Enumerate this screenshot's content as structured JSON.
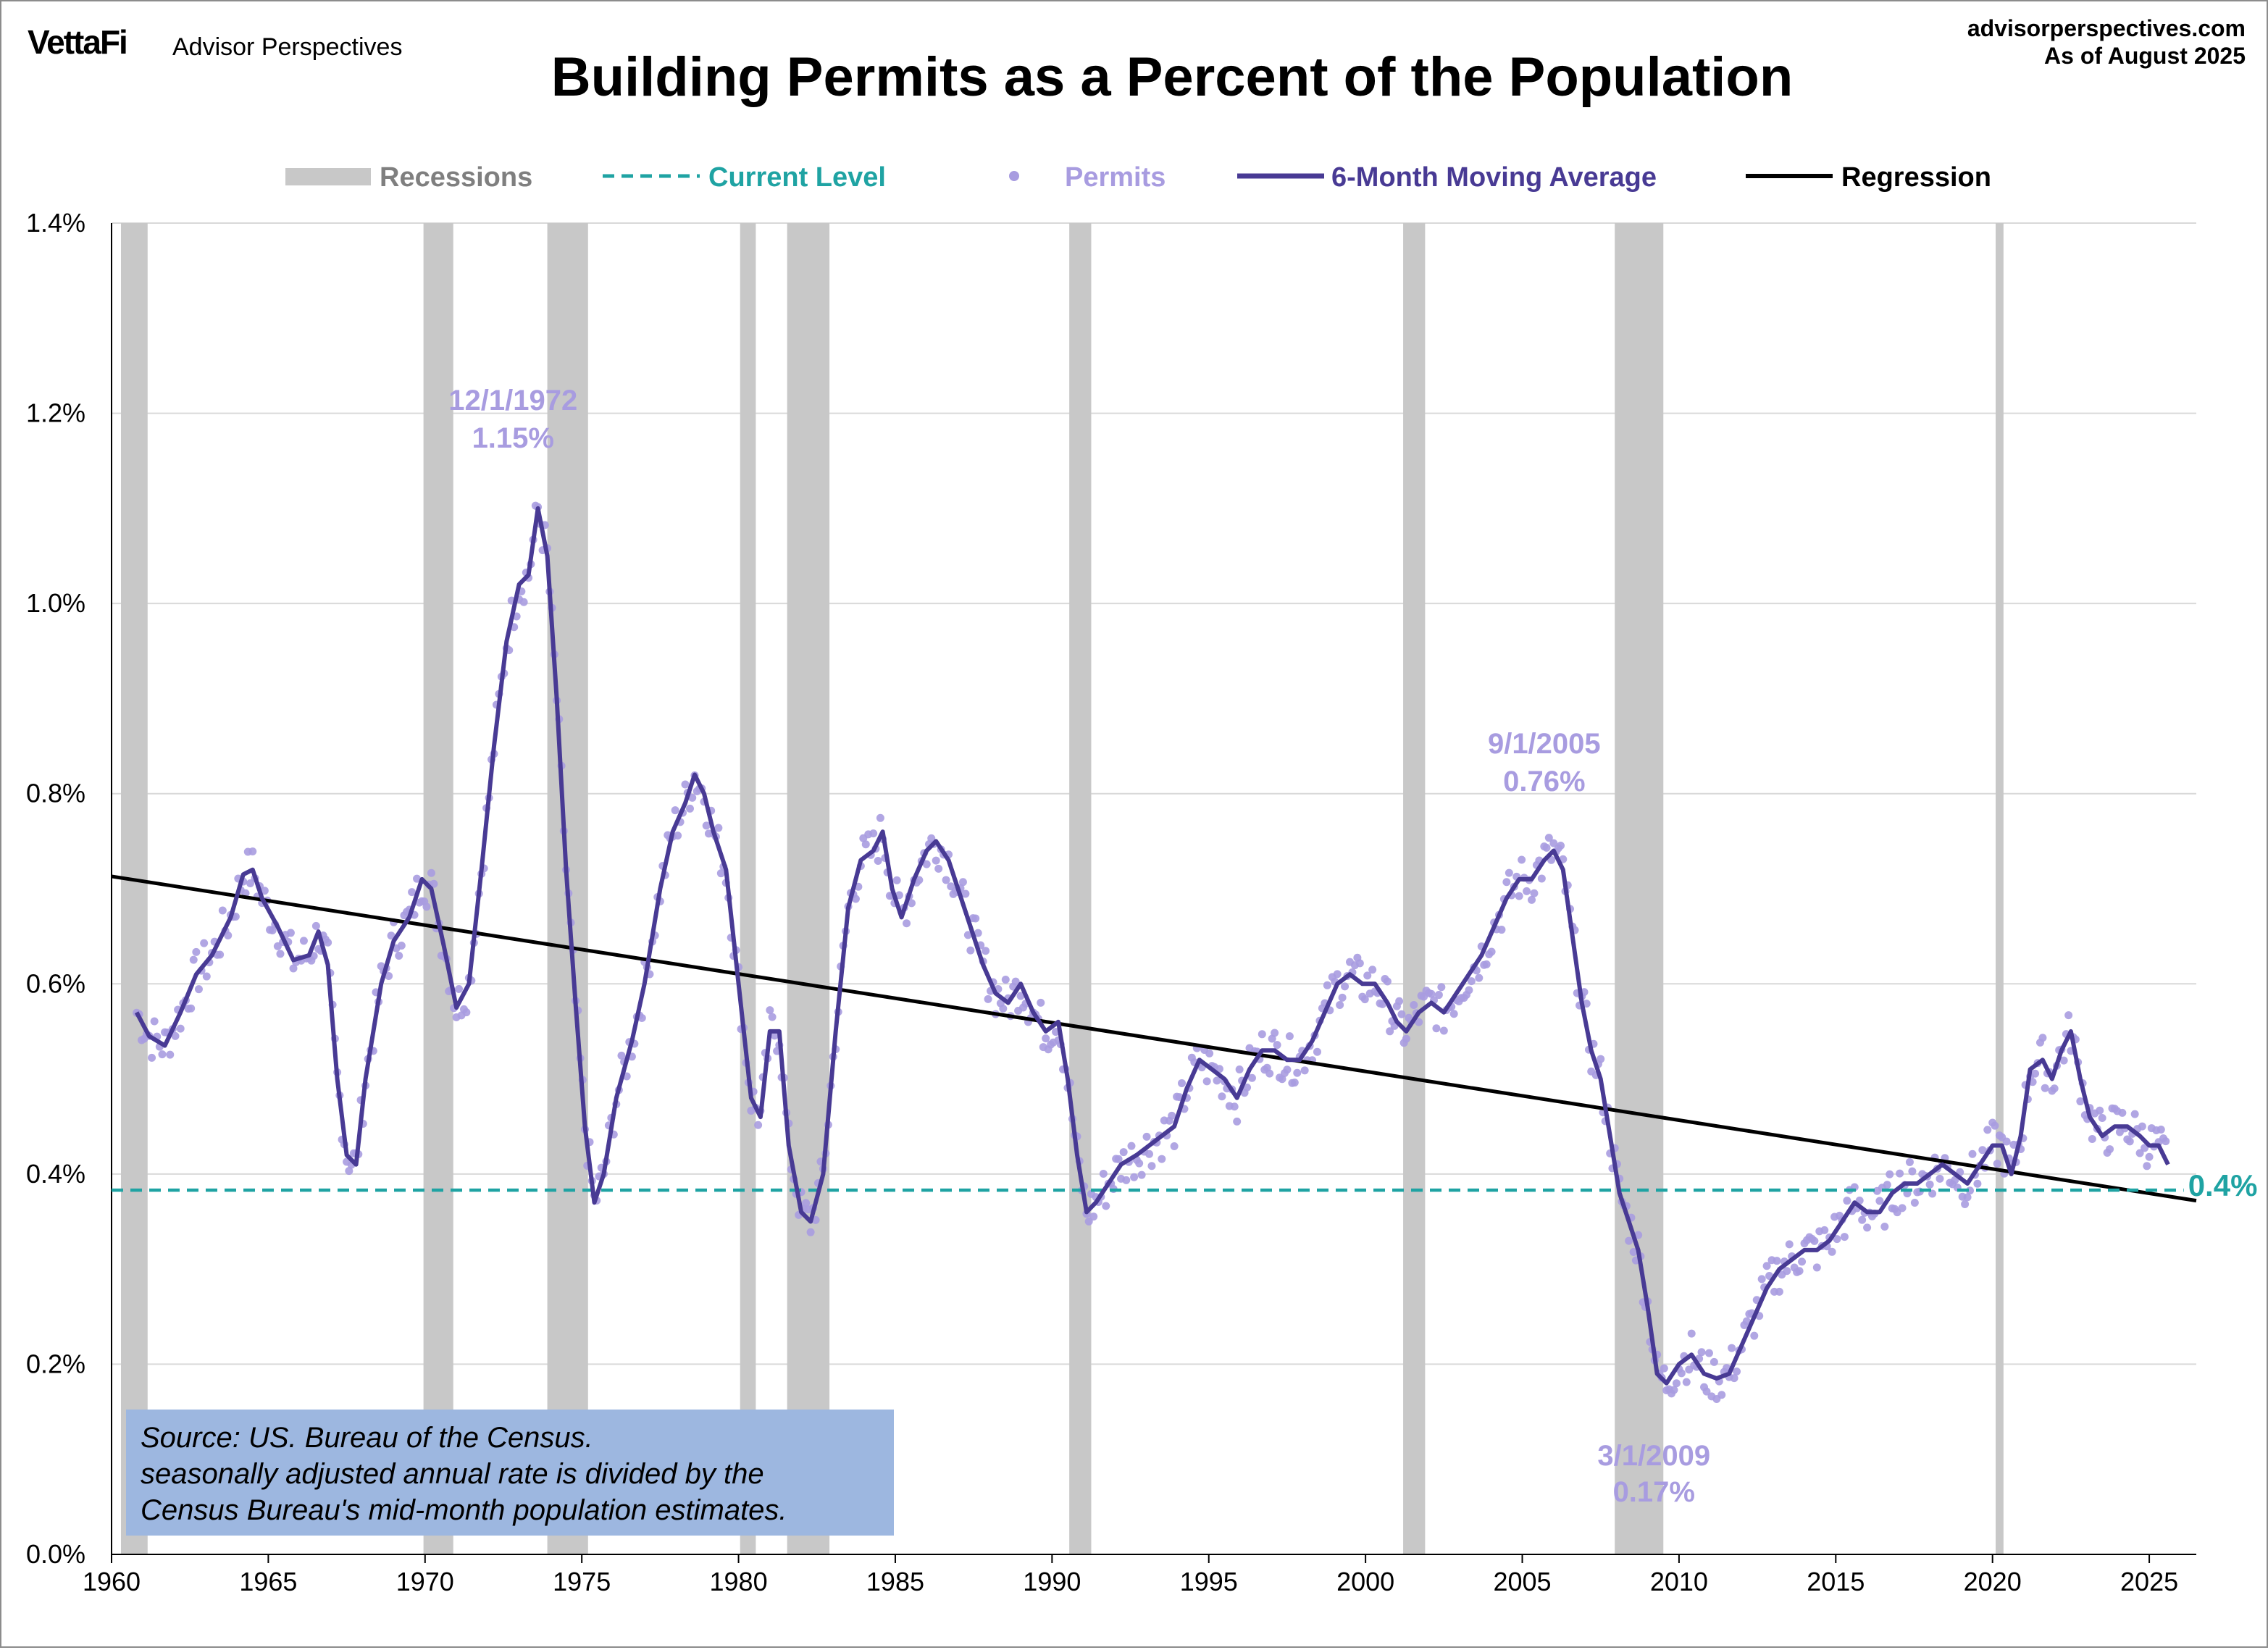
{
  "header": {
    "logo_brand": "VettaFi",
    "logo_sub": "Advisor Perspectives",
    "site": "advisorperspectives.com",
    "as_of": "As of August 2025"
  },
  "chart_data": {
    "type": "line",
    "title": "Building Permits as a Percent of the Population",
    "xlabel": "",
    "ylabel": "",
    "xlim": [
      1960,
      2026.5
    ],
    "ylim": [
      0,
      1.4
    ],
    "grid": "horizontal",
    "legend_placement": "top",
    "x_tick_labels": [
      "1960",
      "1965",
      "1970",
      "1975",
      "1980",
      "1985",
      "1990",
      "1995",
      "2000",
      "2005",
      "2010",
      "2015",
      "2020",
      "2025"
    ],
    "y_tick_labels": [
      "0.0%",
      "0.2%",
      "0.4%",
      "0.6%",
      "0.8%",
      "1.0%",
      "1.2%",
      "1.4%"
    ],
    "legend": [
      {
        "key": "recessions",
        "label": "Recessions",
        "color": "#c8c8c8"
      },
      {
        "key": "current",
        "label": "Current Level",
        "color": "#1fa3a3"
      },
      {
        "key": "permits",
        "label": "Permits",
        "color": "#a89ce0"
      },
      {
        "key": "ma",
        "label": "6-Month Moving Average",
        "color": "#483a94"
      },
      {
        "key": "regression",
        "label": "Regression",
        "color": "#000000"
      }
    ],
    "recessions": [
      [
        1960.3,
        1961.15
      ],
      [
        1969.95,
        1970.9
      ],
      [
        1973.9,
        1975.2
      ],
      [
        1980.05,
        1980.55
      ],
      [
        1981.55,
        1982.9
      ],
      [
        1990.55,
        1991.25
      ],
      [
        2001.2,
        2001.9
      ],
      [
        2007.95,
        2009.5
      ],
      [
        2020.1,
        2020.35
      ]
    ],
    "current_level": 0.383,
    "current_level_label": "0.4%",
    "regression": {
      "x": [
        1960.0,
        2026.5
      ],
      "y": [
        0.713,
        0.372
      ]
    },
    "moving_average": {
      "name": "6-Month Moving Average",
      "points": [
        [
          1960.8,
          0.57
        ],
        [
          1961.2,
          0.545
        ],
        [
          1961.7,
          0.535
        ],
        [
          1962.2,
          0.57
        ],
        [
          1962.7,
          0.61
        ],
        [
          1963.2,
          0.63
        ],
        [
          1963.8,
          0.67
        ],
        [
          1964.2,
          0.715
        ],
        [
          1964.5,
          0.72
        ],
        [
          1964.8,
          0.69
        ],
        [
          1965.3,
          0.66
        ],
        [
          1965.8,
          0.625
        ],
        [
          1966.3,
          0.63
        ],
        [
          1966.6,
          0.655
        ],
        [
          1966.9,
          0.62
        ],
        [
          1967.2,
          0.5
        ],
        [
          1967.5,
          0.42
        ],
        [
          1967.8,
          0.41
        ],
        [
          1968.1,
          0.5
        ],
        [
          1968.6,
          0.6
        ],
        [
          1969.0,
          0.645
        ],
        [
          1969.5,
          0.67
        ],
        [
          1969.9,
          0.71
        ],
        [
          1970.2,
          0.7
        ],
        [
          1970.6,
          0.64
        ],
        [
          1971.0,
          0.575
        ],
        [
          1971.4,
          0.6
        ],
        [
          1971.8,
          0.72
        ],
        [
          1972.2,
          0.85
        ],
        [
          1972.6,
          0.96
        ],
        [
          1973.0,
          1.02
        ],
        [
          1973.3,
          1.03
        ],
        [
          1973.6,
          1.1
        ],
        [
          1973.9,
          1.05
        ],
        [
          1974.2,
          0.9
        ],
        [
          1974.5,
          0.72
        ],
        [
          1974.8,
          0.58
        ],
        [
          1975.1,
          0.45
        ],
        [
          1975.4,
          0.37
        ],
        [
          1975.7,
          0.4
        ],
        [
          1976.1,
          0.48
        ],
        [
          1976.6,
          0.54
        ],
        [
          1977.0,
          0.6
        ],
        [
          1977.5,
          0.7
        ],
        [
          1977.9,
          0.76
        ],
        [
          1978.3,
          0.79
        ],
        [
          1978.6,
          0.82
        ],
        [
          1978.9,
          0.8
        ],
        [
          1979.2,
          0.76
        ],
        [
          1979.6,
          0.72
        ],
        [
          1980.0,
          0.6
        ],
        [
          1980.4,
          0.48
        ],
        [
          1980.7,
          0.46
        ],
        [
          1981.0,
          0.55
        ],
        [
          1981.3,
          0.55
        ],
        [
          1981.6,
          0.43
        ],
        [
          1982.0,
          0.36
        ],
        [
          1982.3,
          0.35
        ],
        [
          1982.7,
          0.4
        ],
        [
          1983.1,
          0.55
        ],
        [
          1983.5,
          0.68
        ],
        [
          1983.9,
          0.73
        ],
        [
          1984.3,
          0.74
        ],
        [
          1984.6,
          0.76
        ],
        [
          1984.9,
          0.7
        ],
        [
          1985.2,
          0.67
        ],
        [
          1985.6,
          0.71
        ],
        [
          1986.0,
          0.74
        ],
        [
          1986.3,
          0.75
        ],
        [
          1986.7,
          0.73
        ],
        [
          1987.0,
          0.7
        ],
        [
          1987.4,
          0.66
        ],
        [
          1987.8,
          0.62
        ],
        [
          1988.2,
          0.59
        ],
        [
          1988.6,
          0.58
        ],
        [
          1989.0,
          0.6
        ],
        [
          1989.4,
          0.57
        ],
        [
          1989.8,
          0.55
        ],
        [
          1990.2,
          0.56
        ],
        [
          1990.5,
          0.5
        ],
        [
          1990.8,
          0.42
        ],
        [
          1991.1,
          0.36
        ],
        [
          1991.4,
          0.37
        ],
        [
          1991.8,
          0.39
        ],
        [
          1992.2,
          0.41
        ],
        [
          1992.7,
          0.42
        ],
        [
          1993.1,
          0.43
        ],
        [
          1993.5,
          0.44
        ],
        [
          1993.9,
          0.45
        ],
        [
          1994.3,
          0.49
        ],
        [
          1994.7,
          0.52
        ],
        [
          1995.1,
          0.51
        ],
        [
          1995.5,
          0.5
        ],
        [
          1995.9,
          0.48
        ],
        [
          1996.3,
          0.51
        ],
        [
          1996.7,
          0.53
        ],
        [
          1997.1,
          0.53
        ],
        [
          1997.5,
          0.52
        ],
        [
          1997.9,
          0.52
        ],
        [
          1998.3,
          0.54
        ],
        [
          1998.7,
          0.57
        ],
        [
          1999.1,
          0.6
        ],
        [
          1999.5,
          0.61
        ],
        [
          1999.9,
          0.6
        ],
        [
          2000.3,
          0.6
        ],
        [
          2000.7,
          0.58
        ],
        [
          2001.0,
          0.56
        ],
        [
          2001.3,
          0.55
        ],
        [
          2001.7,
          0.57
        ],
        [
          2002.1,
          0.58
        ],
        [
          2002.5,
          0.57
        ],
        [
          2002.9,
          0.59
        ],
        [
          2003.3,
          0.61
        ],
        [
          2003.7,
          0.63
        ],
        [
          2004.1,
          0.66
        ],
        [
          2004.5,
          0.69
        ],
        [
          2004.9,
          0.71
        ],
        [
          2005.3,
          0.71
        ],
        [
          2005.7,
          0.73
        ],
        [
          2006.0,
          0.74
        ],
        [
          2006.3,
          0.72
        ],
        [
          2006.6,
          0.65
        ],
        [
          2006.9,
          0.58
        ],
        [
          2007.2,
          0.53
        ],
        [
          2007.5,
          0.5
        ],
        [
          2007.8,
          0.44
        ],
        [
          2008.1,
          0.38
        ],
        [
          2008.4,
          0.35
        ],
        [
          2008.7,
          0.32
        ],
        [
          2009.0,
          0.26
        ],
        [
          2009.3,
          0.19
        ],
        [
          2009.6,
          0.18
        ],
        [
          2010.0,
          0.2
        ],
        [
          2010.4,
          0.21
        ],
        [
          2010.8,
          0.19
        ],
        [
          2011.2,
          0.185
        ],
        [
          2011.6,
          0.19
        ],
        [
          2012.0,
          0.22
        ],
        [
          2012.4,
          0.25
        ],
        [
          2012.8,
          0.28
        ],
        [
          2013.2,
          0.3
        ],
        [
          2013.6,
          0.31
        ],
        [
          2014.0,
          0.32
        ],
        [
          2014.4,
          0.32
        ],
        [
          2014.8,
          0.33
        ],
        [
          2015.2,
          0.35
        ],
        [
          2015.6,
          0.37
        ],
        [
          2016.0,
          0.36
        ],
        [
          2016.4,
          0.36
        ],
        [
          2016.8,
          0.38
        ],
        [
          2017.2,
          0.39
        ],
        [
          2017.6,
          0.39
        ],
        [
          2018.0,
          0.4
        ],
        [
          2018.4,
          0.41
        ],
        [
          2018.8,
          0.4
        ],
        [
          2019.2,
          0.39
        ],
        [
          2019.6,
          0.41
        ],
        [
          2020.0,
          0.43
        ],
        [
          2020.3,
          0.43
        ],
        [
          2020.6,
          0.4
        ],
        [
          2020.9,
          0.44
        ],
        [
          2021.2,
          0.51
        ],
        [
          2021.6,
          0.52
        ],
        [
          2021.9,
          0.5
        ],
        [
          2022.2,
          0.53
        ],
        [
          2022.5,
          0.55
        ],
        [
          2022.8,
          0.5
        ],
        [
          2023.1,
          0.46
        ],
        [
          2023.5,
          0.44
        ],
        [
          2023.9,
          0.45
        ],
        [
          2024.3,
          0.45
        ],
        [
          2024.7,
          0.44
        ],
        [
          2025.0,
          0.43
        ],
        [
          2025.3,
          0.43
        ],
        [
          2025.6,
          0.41
        ]
      ]
    },
    "annotations": [
      {
        "date": "12/1/1972",
        "value_label": "1.15%",
        "x": 1972.9,
        "y": 1.15
      },
      {
        "date": "9/1/2005",
        "value_label": "0.76%",
        "x": 2005.7,
        "y": 0.76
      },
      {
        "date": "3/1/2009",
        "value_label": "0.17%",
        "x": 2009.2,
        "y": 0.17
      }
    ],
    "source_note": [
      "Source: US. Bureau of the Census.",
      "seasonally adjusted annual rate is divided by the",
      "Census Bureau's mid-month population estimates."
    ]
  }
}
